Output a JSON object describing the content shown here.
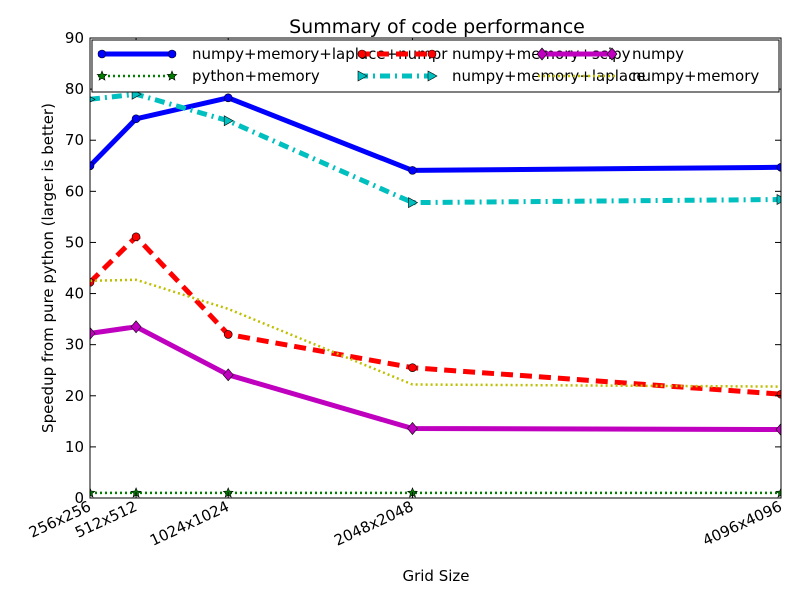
{
  "chart_data": {
    "type": "line",
    "title": "Summary of code performance",
    "xlabel": "Grid Size",
    "ylabel": "Speedup from pure python (larger is better)",
    "x": [
      256,
      512,
      1024,
      2048,
      4096
    ],
    "x_tick_labels": [
      "256x256",
      "512x512",
      "1024x1024",
      "2048x2048",
      "4096x4096"
    ],
    "xlim": [
      256,
      4096
    ],
    "ylim": [
      0,
      90
    ],
    "y_ticks": [
      0,
      10,
      20,
      30,
      40,
      50,
      60,
      70,
      80,
      90
    ],
    "grid": false,
    "legend_position": "top",
    "series": [
      {
        "name": "numpy+memory+laplace+numpr",
        "color": "#0000ff",
        "style": "solid",
        "marker": "circle",
        "values": [
          65,
          74.2,
          78.3,
          64.1,
          64.7
        ]
      },
      {
        "name": "python+memory",
        "color": "#007f00",
        "style": "dotted",
        "marker": "star",
        "values": [
          1,
          1,
          1,
          1,
          1
        ]
      },
      {
        "name": "numpy+memory+scipy",
        "color": "#ff0000",
        "style": "dashed",
        "marker": "circle",
        "values": [
          42.2,
          51.1,
          32,
          25.5,
          20.3
        ]
      },
      {
        "name": "numpy+memory+laplace",
        "color": "#00bfbf",
        "style": "dashdot",
        "marker": "triangle-right",
        "values": [
          78,
          79,
          73.8,
          57.8,
          58.4
        ]
      },
      {
        "name": "numpy",
        "color": "#bf00bf",
        "style": "solid",
        "marker": "diamond",
        "values": [
          32.2,
          33.5,
          24.1,
          13.6,
          13.4
        ]
      },
      {
        "name": "numpy+memory",
        "color": "#bfbf00",
        "style": "dotted",
        "marker": "none",
        "values": [
          42.5,
          42.7,
          37,
          22.2,
          21.8
        ]
      }
    ]
  }
}
